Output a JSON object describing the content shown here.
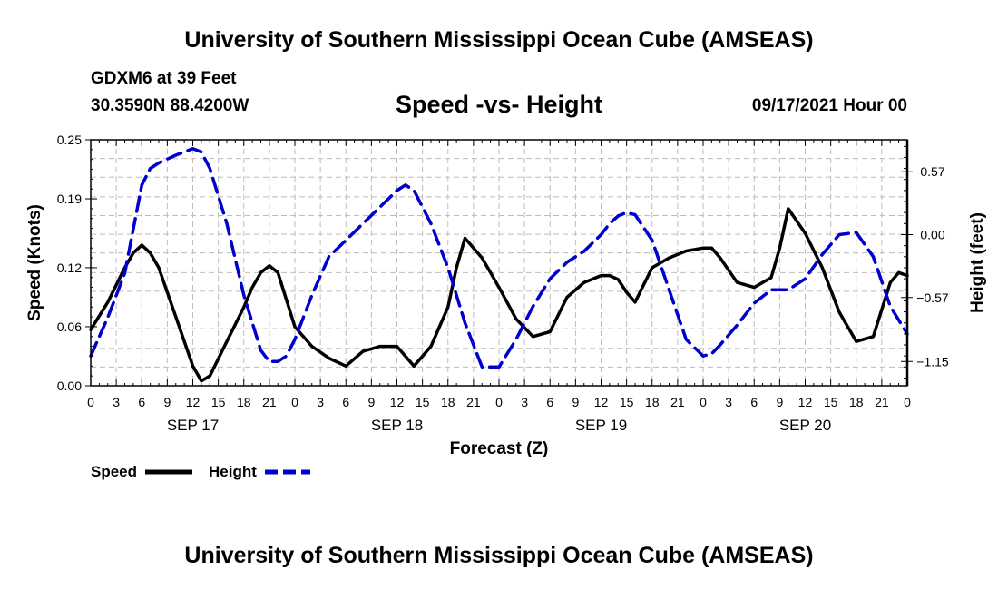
{
  "header": {
    "top_title": "University of Southern Mississippi Ocean Cube (AMSEAS)",
    "bottom_title": "University of Southern Mississippi Ocean Cube (AMSEAS)",
    "station": "GDXM6 at 39 Feet",
    "coords": "30.3590N  88.4200W",
    "chart_title": "Speed -vs- Height",
    "date_label": "09/17/2021 Hour 00"
  },
  "chart_data": {
    "type": "line",
    "title": "Speed -vs- Height",
    "xlabel": "Forecast (Z)",
    "ylabel_left": "Speed (Knots)",
    "ylabel_right": "Height (feet)",
    "x_range": [
      0,
      96
    ],
    "x_tick_labels": [
      "0",
      "3",
      "6",
      "9",
      "12",
      "15",
      "18",
      "21",
      "0",
      "3",
      "6",
      "9",
      "12",
      "15",
      "18",
      "21",
      "0",
      "3",
      "6",
      "9",
      "12",
      "15",
      "18",
      "21",
      "0",
      "3",
      "6",
      "9",
      "12",
      "15",
      "18",
      "21",
      "0"
    ],
    "day_labels": [
      {
        "label": "SEP 17",
        "hour": 12
      },
      {
        "label": "SEP 18",
        "hour": 36
      },
      {
        "label": "SEP 19",
        "hour": 60
      },
      {
        "label": "SEP 20",
        "hour": 84
      }
    ],
    "ylim_left": [
      0,
      0.25
    ],
    "y_ticks_left": [
      0.0,
      0.06,
      0.12,
      0.19,
      0.25
    ],
    "y_tick_labels_left": [
      "0.00",
      "0.06",
      "0.12",
      "0.19",
      "0.25"
    ],
    "ylim_right": [
      -1.37,
      0.86
    ],
    "y_ticks_right": [
      -1.15,
      -0.57,
      0.0,
      0.57
    ],
    "y_tick_labels_right": [
      "−1.15",
      "−0.57",
      "0.00",
      "0.57"
    ],
    "grid": true,
    "legend": [
      {
        "label": "Speed",
        "color": "#000000",
        "style": "solid"
      },
      {
        "label": "Height",
        "color": "#0000cc",
        "style": "dashed"
      }
    ],
    "series": [
      {
        "name": "Speed",
        "axis": "left",
        "color": "#000000",
        "x": [
          0,
          2,
          4,
          5,
          6,
          7,
          8,
          10,
          12,
          13,
          14,
          16,
          18,
          19,
          20,
          21,
          22,
          24,
          26,
          28,
          30,
          32,
          34,
          36,
          37,
          38,
          40,
          42,
          43,
          44,
          46,
          48,
          50,
          52,
          54,
          56,
          58,
          60,
          61,
          62,
          63,
          64,
          66,
          68,
          70,
          72,
          73,
          74,
          76,
          78,
          80,
          81,
          82,
          84,
          86,
          88,
          90,
          92,
          94,
          95,
          96
        ],
        "values": [
          0.057,
          0.085,
          0.12,
          0.135,
          0.143,
          0.135,
          0.12,
          0.07,
          0.02,
          0.005,
          0.01,
          0.045,
          0.08,
          0.1,
          0.115,
          0.122,
          0.115,
          0.06,
          0.04,
          0.028,
          0.02,
          0.035,
          0.04,
          0.04,
          0.03,
          0.02,
          0.04,
          0.08,
          0.12,
          0.15,
          0.13,
          0.1,
          0.068,
          0.05,
          0.055,
          0.09,
          0.105,
          0.112,
          0.112,
          0.108,
          0.095,
          0.085,
          0.12,
          0.13,
          0.137,
          0.14,
          0.14,
          0.13,
          0.105,
          0.1,
          0.11,
          0.14,
          0.18,
          0.155,
          0.12,
          0.075,
          0.045,
          0.05,
          0.105,
          0.115,
          0.112
        ]
      },
      {
        "name": "Height",
        "axis": "right",
        "color": "#0000cc",
        "x": [
          0,
          2,
          4,
          6,
          7,
          8,
          10,
          12,
          13,
          14,
          16,
          18,
          20,
          21,
          22,
          23,
          24,
          26,
          28,
          30,
          32,
          34,
          36,
          37,
          38,
          40,
          42,
          44,
          46,
          48,
          50,
          52,
          54,
          56,
          58,
          60,
          61,
          62,
          63,
          64,
          66,
          68,
          70,
          72,
          73,
          74,
          76,
          78,
          80,
          82,
          84,
          86,
          88,
          90,
          92,
          94,
          96
        ],
        "values": [
          -1.1,
          -0.75,
          -0.35,
          0.45,
          0.6,
          0.65,
          0.72,
          0.78,
          0.75,
          0.6,
          0.1,
          -0.55,
          -1.05,
          -1.15,
          -1.15,
          -1.1,
          -0.95,
          -0.55,
          -0.2,
          -0.05,
          0.1,
          0.25,
          0.4,
          0.45,
          0.4,
          0.1,
          -0.3,
          -0.8,
          -1.2,
          -1.2,
          -0.95,
          -0.65,
          -0.4,
          -0.25,
          -0.15,
          0.0,
          0.1,
          0.17,
          0.2,
          0.18,
          -0.05,
          -0.5,
          -0.95,
          -1.1,
          -1.08,
          -1.0,
          -0.82,
          -0.62,
          -0.5,
          -0.5,
          -0.4,
          -0.18,
          0.0,
          0.02,
          -0.2,
          -0.65,
          -0.9
        ]
      }
    ]
  }
}
